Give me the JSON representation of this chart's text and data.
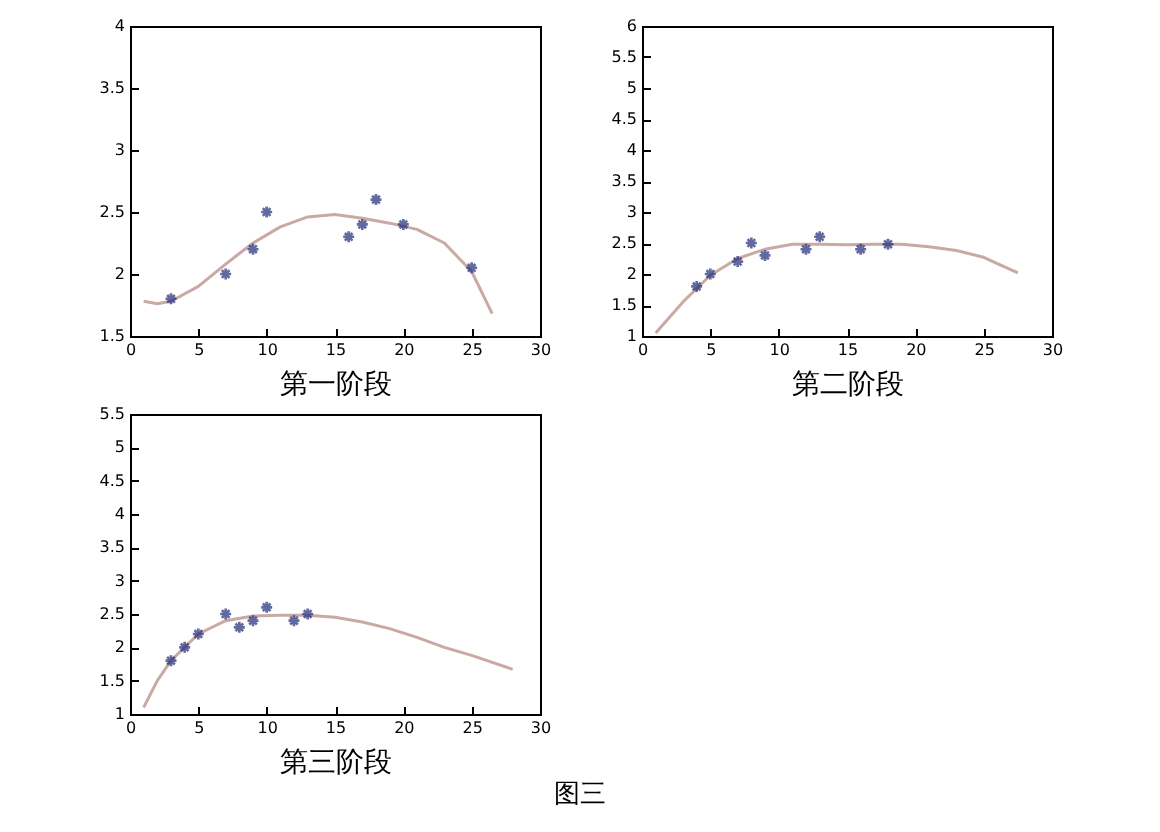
{
  "chart_data": [
    {
      "type": "scatter",
      "xlabel": "第一阶段",
      "xlim": [
        0,
        30
      ],
      "xticks": [
        0,
        5,
        10,
        15,
        20,
        25,
        30
      ],
      "ylim": [
        1.5,
        4
      ],
      "yticks": [
        1.5,
        2,
        2.5,
        3,
        3.5,
        4
      ],
      "grid": false,
      "series": [
        {
          "type": "line",
          "marker": "none",
          "color": "#c9aaa3",
          "x": [
            1,
            2,
            3,
            5,
            7,
            9,
            11,
            13,
            15,
            17,
            19,
            21,
            23,
            25,
            26.5
          ],
          "values": [
            1.78,
            1.76,
            1.78,
            1.9,
            2.08,
            2.25,
            2.38,
            2.46,
            2.48,
            2.45,
            2.41,
            2.36,
            2.25,
            2.02,
            1.68
          ]
        },
        {
          "type": "scatter",
          "marker": "cross",
          "color": "#1f2a7a",
          "x": [
            3,
            7,
            9,
            10,
            16,
            17,
            18,
            20,
            25
          ],
          "values": [
            1.8,
            2.0,
            2.2,
            2.5,
            2.3,
            2.4,
            2.6,
            2.4,
            2.05
          ]
        }
      ]
    },
    {
      "type": "scatter",
      "xlabel": "第二阶段",
      "xlim": [
        0,
        30
      ],
      "xticks": [
        0,
        5,
        10,
        15,
        20,
        25,
        30
      ],
      "ylim": [
        1,
        6
      ],
      "yticks": [
        1,
        1.5,
        2,
        2.5,
        3,
        3.5,
        4,
        4.5,
        5,
        5.5,
        6
      ],
      "grid": false,
      "series": [
        {
          "type": "line",
          "marker": "none",
          "color": "#c9aaa3",
          "x": [
            1,
            3,
            5,
            7,
            9,
            11,
            13,
            15,
            17,
            19,
            21,
            23,
            25,
            27.5
          ],
          "values": [
            1.05,
            1.55,
            1.98,
            2.25,
            2.4,
            2.48,
            2.48,
            2.47,
            2.48,
            2.48,
            2.44,
            2.38,
            2.27,
            2.02
          ]
        },
        {
          "type": "scatter",
          "marker": "cross",
          "color": "#1f2a7a",
          "x": [
            4,
            5,
            7,
            8,
            9,
            12,
            13,
            16,
            18
          ],
          "values": [
            1.8,
            2.0,
            2.2,
            2.5,
            2.3,
            2.4,
            2.6,
            2.4,
            2.48
          ]
        }
      ]
    },
    {
      "type": "scatter",
      "xlabel": "第三阶段",
      "xlim": [
        0,
        30
      ],
      "xticks": [
        0,
        5,
        10,
        15,
        20,
        25,
        30
      ],
      "ylim": [
        1,
        5.5
      ],
      "yticks": [
        1,
        1.5,
        2,
        2.5,
        3,
        3.5,
        4,
        4.5,
        5,
        5.5
      ],
      "grid": false,
      "annotations": [
        "图三"
      ],
      "series": [
        {
          "type": "line",
          "marker": "none",
          "color": "#c9aaa3",
          "x": [
            1,
            2,
            3,
            5,
            7,
            9,
            11,
            13,
            15,
            17,
            19,
            21,
            23,
            25,
            28
          ],
          "values": [
            1.1,
            1.5,
            1.8,
            2.2,
            2.4,
            2.47,
            2.48,
            2.48,
            2.45,
            2.38,
            2.28,
            2.15,
            2.0,
            1.88,
            1.67
          ]
        },
        {
          "type": "scatter",
          "marker": "cross",
          "color": "#1f2a7a",
          "x": [
            3,
            4,
            5,
            7,
            8,
            9,
            10,
            12,
            13
          ],
          "values": [
            1.8,
            2.0,
            2.2,
            2.5,
            2.3,
            2.4,
            2.6,
            2.4,
            2.5
          ]
        }
      ]
    }
  ]
}
